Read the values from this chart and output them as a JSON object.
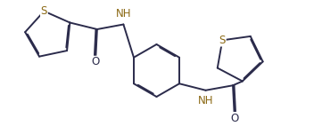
{
  "bg_color": "#ffffff",
  "line_color": "#2b2b4b",
  "sulfur_color": "#8B6914",
  "nh_color": "#8B6914",
  "lw": 1.4,
  "doff": 0.013,
  "figsize": [
    3.52,
    1.51
  ],
  "dpi": 100,
  "xlim": [
    0,
    3.52
  ],
  "ylim": [
    0,
    1.51
  ]
}
